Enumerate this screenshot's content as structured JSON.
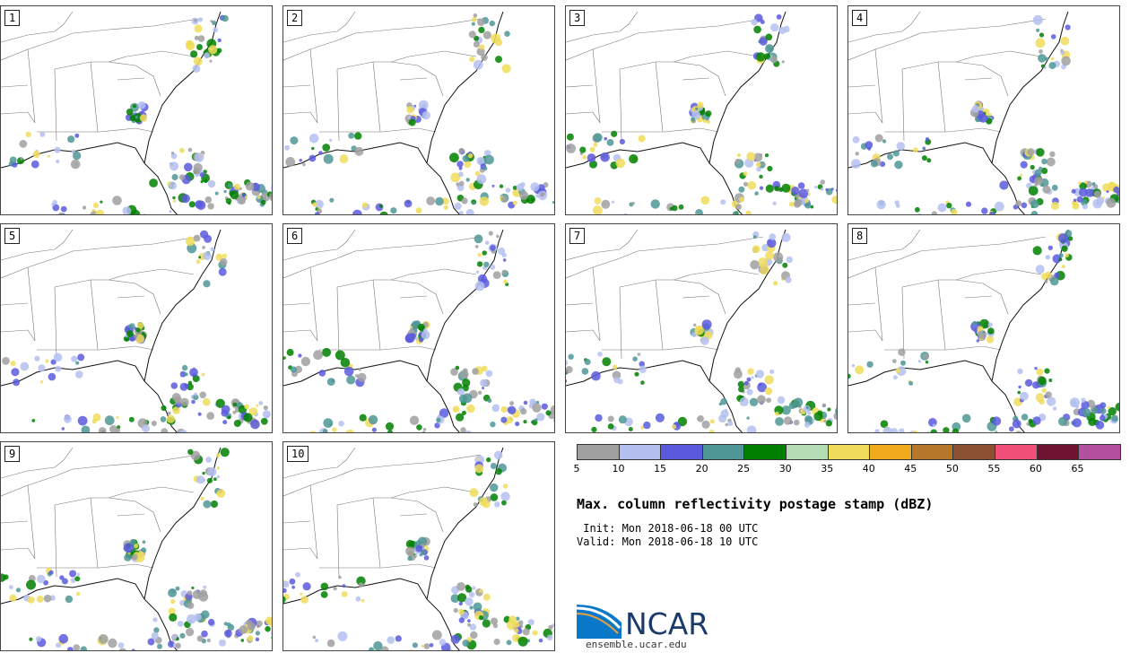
{
  "panels": [
    {
      "label": "1"
    },
    {
      "label": "2"
    },
    {
      "label": "3"
    },
    {
      "label": "4"
    },
    {
      "label": "5"
    },
    {
      "label": "6"
    },
    {
      "label": "7"
    },
    {
      "label": "8"
    },
    {
      "label": "9"
    },
    {
      "label": "10"
    }
  ],
  "colorbar": {
    "colors": [
      "#a0a0a0",
      "#b4bff0",
      "#5a5ade",
      "#4f9696",
      "#008000",
      "#b4dcb4",
      "#f0dc5a",
      "#f0aa1e",
      "#b47828",
      "#8c5032",
      "#f05078",
      "#6e1432",
      "#b450a0"
    ],
    "ticks": [
      "5",
      "10",
      "15",
      "20",
      "25",
      "30",
      "35",
      "40",
      "45",
      "50",
      "55",
      "60",
      "65"
    ]
  },
  "title": "Max. column reflectivity postage stamp (dBZ)",
  "init": " Init: Mon 2018-06-18 00 UTC",
  "valid": "Valid: Mon 2018-06-18 10 UTC",
  "logo": {
    "name": "NCAR",
    "url": "ensemble.ucar.edu"
  }
}
